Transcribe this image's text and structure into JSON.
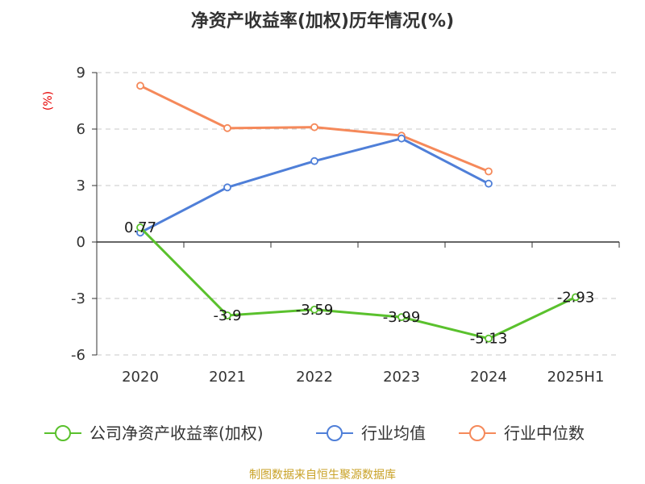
{
  "chart_data": {
    "type": "line",
    "title": "净资产收益率(加权)历年情况(%)",
    "unit_label": "(%)",
    "categories": [
      "2020",
      "2021",
      "2022",
      "2023",
      "2024",
      "2025H1"
    ],
    "ylim": [
      -6,
      9
    ],
    "yticks": [
      9,
      6,
      3,
      0,
      -3,
      -6
    ],
    "grid": true,
    "legend_position": "bottom",
    "series": [
      {
        "name": "公司净资产收益率(加权)",
        "color": "#5ac12d",
        "values": [
          0.77,
          -3.9,
          -3.59,
          -3.99,
          -5.13,
          -2.93
        ],
        "labels": [
          "0.77",
          "-3.9",
          "-3.59",
          "-3.99",
          "-5.13",
          "-2.93"
        ]
      },
      {
        "name": "行业均值",
        "color": "#4f7fd8",
        "values": [
          0.5,
          2.9,
          4.3,
          5.5,
          3.1,
          null
        ]
      },
      {
        "name": "行业中位数",
        "color": "#f5895a",
        "values": [
          8.3,
          6.05,
          6.1,
          5.65,
          3.75,
          null
        ]
      }
    ]
  },
  "source": "制图数据来自恒生聚源数据库"
}
